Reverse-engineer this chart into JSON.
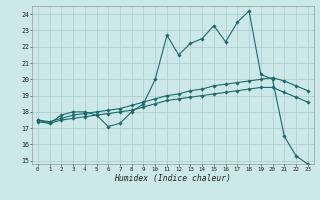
{
  "xlabel": "Humidex (Indice chaleur)",
  "bg_color": "#cce8e8",
  "grid_color": "#aacccc",
  "line_color": "#1a6b6b",
  "xlim": [
    -0.5,
    23.5
  ],
  "ylim": [
    14.8,
    24.5
  ],
  "xticks": [
    0,
    1,
    2,
    3,
    4,
    5,
    6,
    7,
    8,
    9,
    10,
    11,
    12,
    13,
    14,
    15,
    16,
    17,
    18,
    19,
    20,
    21,
    22,
    23
  ],
  "yticks": [
    15,
    16,
    17,
    18,
    19,
    20,
    21,
    22,
    23,
    24
  ],
  "line_jagged_x": [
    0,
    1,
    2,
    3,
    4,
    5,
    6,
    7,
    8,
    9,
    10,
    11,
    12,
    13,
    14,
    15,
    16,
    17,
    18,
    19,
    20,
    21,
    22,
    23
  ],
  "line_jagged_y": [
    17.5,
    17.3,
    17.8,
    18.0,
    18.0,
    17.8,
    17.1,
    17.3,
    18.0,
    18.5,
    20.0,
    22.7,
    21.5,
    22.2,
    22.5,
    23.3,
    22.3,
    23.5,
    24.2,
    20.3,
    20.0,
    16.5,
    15.3,
    14.8
  ],
  "line_upper_x": [
    0,
    1,
    2,
    3,
    4,
    5,
    6,
    7,
    8,
    9,
    10,
    11,
    12,
    13,
    14,
    15,
    16,
    17,
    18,
    19,
    20,
    21,
    22,
    23
  ],
  "line_upper_y": [
    17.5,
    17.4,
    17.6,
    17.8,
    17.9,
    18.0,
    18.1,
    18.2,
    18.4,
    18.6,
    18.8,
    19.0,
    19.1,
    19.3,
    19.4,
    19.6,
    19.7,
    19.8,
    19.9,
    20.0,
    20.1,
    19.9,
    19.6,
    19.3
  ],
  "line_lower_x": [
    0,
    1,
    2,
    3,
    4,
    5,
    6,
    7,
    8,
    9,
    10,
    11,
    12,
    13,
    14,
    15,
    16,
    17,
    18,
    19,
    20,
    21,
    22,
    23
  ],
  "line_lower_y": [
    17.4,
    17.3,
    17.5,
    17.6,
    17.7,
    17.8,
    17.9,
    18.0,
    18.1,
    18.3,
    18.5,
    18.7,
    18.8,
    18.9,
    19.0,
    19.1,
    19.2,
    19.3,
    19.4,
    19.5,
    19.5,
    19.2,
    18.9,
    18.6
  ]
}
